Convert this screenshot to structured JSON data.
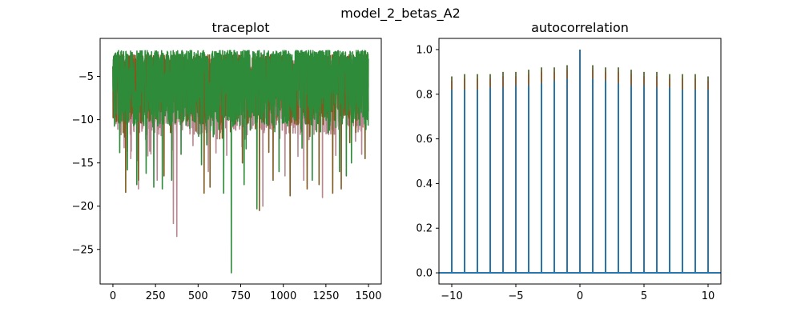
{
  "figure": {
    "suptitle": "model_2_betas_A2"
  },
  "chart_data": [
    {
      "type": "line",
      "title": "traceplot",
      "xlabel": "",
      "ylabel": "",
      "xlim": [
        -75,
        1575
      ],
      "ylim": [
        -29.0,
        -0.6
      ],
      "xticks": [
        0,
        250,
        500,
        750,
        1000,
        1250,
        1500
      ],
      "yticks": [
        -25,
        -20,
        -15,
        -10,
        -5
      ],
      "x_count": 1500,
      "series": [
        {
          "color": "#b8868f",
          "values_summary": {
            "typical_range": [
              -10,
              -3
            ],
            "min": -23.5
          },
          "spikes": [
            [
              105,
              -14.5
            ],
            [
              150,
              -18.0
            ],
            [
              260,
              -17.0
            ],
            [
              355,
              -22.0
            ],
            [
              375,
              -23.5
            ],
            [
              470,
              -13.0
            ],
            [
              560,
              -16.0
            ],
            [
              880,
              -20.0
            ],
            [
              1010,
              -16.5
            ],
            [
              1120,
              -17.0
            ],
            [
              1230,
              -19.0
            ],
            [
              1460,
              -14.0
            ]
          ]
        },
        {
          "color": "#7f5a1f",
          "values_summary": {
            "typical_range": [
              -9,
              -2.5
            ],
            "min": -20.5
          },
          "spikes": [
            [
              60,
              -11.5
            ],
            [
              75,
              -18.4
            ],
            [
              150,
              -17.0
            ],
            [
              300,
              -16.5
            ],
            [
              535,
              -18.5
            ],
            [
              570,
              -17.8
            ],
            [
              760,
              -15.0
            ],
            [
              860,
              -20.5
            ],
            [
              940,
              -17.0
            ],
            [
              1040,
              -18.8
            ],
            [
              1140,
              -18.0
            ],
            [
              1210,
              -17.5
            ],
            [
              1290,
              -18.5
            ],
            [
              1340,
              -18.0
            ],
            [
              1480,
              -14.5
            ]
          ]
        },
        {
          "color": "#2e8b3a",
          "values_summary": {
            "typical_range": [
              -9,
              -2.0
            ],
            "min": -27.7
          },
          "spikes": [
            [
              40,
              -13.8
            ],
            [
              85,
              -15.8
            ],
            [
              140,
              -17.5
            ],
            [
              195,
              -16.2
            ],
            [
              240,
              -17.8
            ],
            [
              290,
              -18.0
            ],
            [
              345,
              -17.0
            ],
            [
              400,
              -14.0
            ],
            [
              520,
              -15.2
            ],
            [
              650,
              -18.5
            ],
            [
              695,
              -27.7
            ],
            [
              770,
              -17.5
            ],
            [
              845,
              -20.3
            ],
            [
              975,
              -16.0
            ],
            [
              1170,
              -17.0
            ],
            [
              1330,
              -16.0
            ],
            [
              1370,
              -16.5
            ],
            [
              1400,
              -15.0
            ]
          ]
        }
      ]
    },
    {
      "type": "bar",
      "title": "autocorrelation",
      "xlabel": "",
      "ylabel": "",
      "xlim": [
        -11,
        11
      ],
      "ylim": [
        -0.05,
        1.05
      ],
      "xticks": [
        -10,
        -5,
        0,
        5,
        10
      ],
      "yticks": [
        0.0,
        0.2,
        0.4,
        0.6,
        0.8,
        1.0
      ],
      "lags": [
        -10,
        -9,
        -8,
        -7,
        -6,
        -5,
        -4,
        -3,
        -2,
        -1,
        0,
        1,
        2,
        3,
        4,
        5,
        6,
        7,
        8,
        9,
        10
      ],
      "series": [
        {
          "color": "#556b2f",
          "values": [
            0.88,
            0.89,
            0.89,
            0.89,
            0.9,
            0.9,
            0.91,
            0.92,
            0.92,
            0.93,
            1.0,
            0.93,
            0.92,
            0.92,
            0.91,
            0.9,
            0.9,
            0.89,
            0.89,
            0.89,
            0.88
          ]
        },
        {
          "color": "#8b5a2b",
          "values": [
            0.86,
            0.87,
            0.87,
            0.87,
            0.88,
            0.88,
            0.89,
            0.9,
            0.9,
            0.91,
            1.0,
            0.91,
            0.9,
            0.9,
            0.89,
            0.88,
            0.88,
            0.87,
            0.87,
            0.87,
            0.86
          ]
        },
        {
          "color": "#1f77b4",
          "values": [
            0.82,
            0.82,
            0.82,
            0.83,
            0.83,
            0.84,
            0.84,
            0.85,
            0.86,
            0.87,
            1.0,
            0.87,
            0.86,
            0.85,
            0.84,
            0.84,
            0.83,
            0.83,
            0.82,
            0.82,
            0.82
          ]
        }
      ]
    }
  ]
}
